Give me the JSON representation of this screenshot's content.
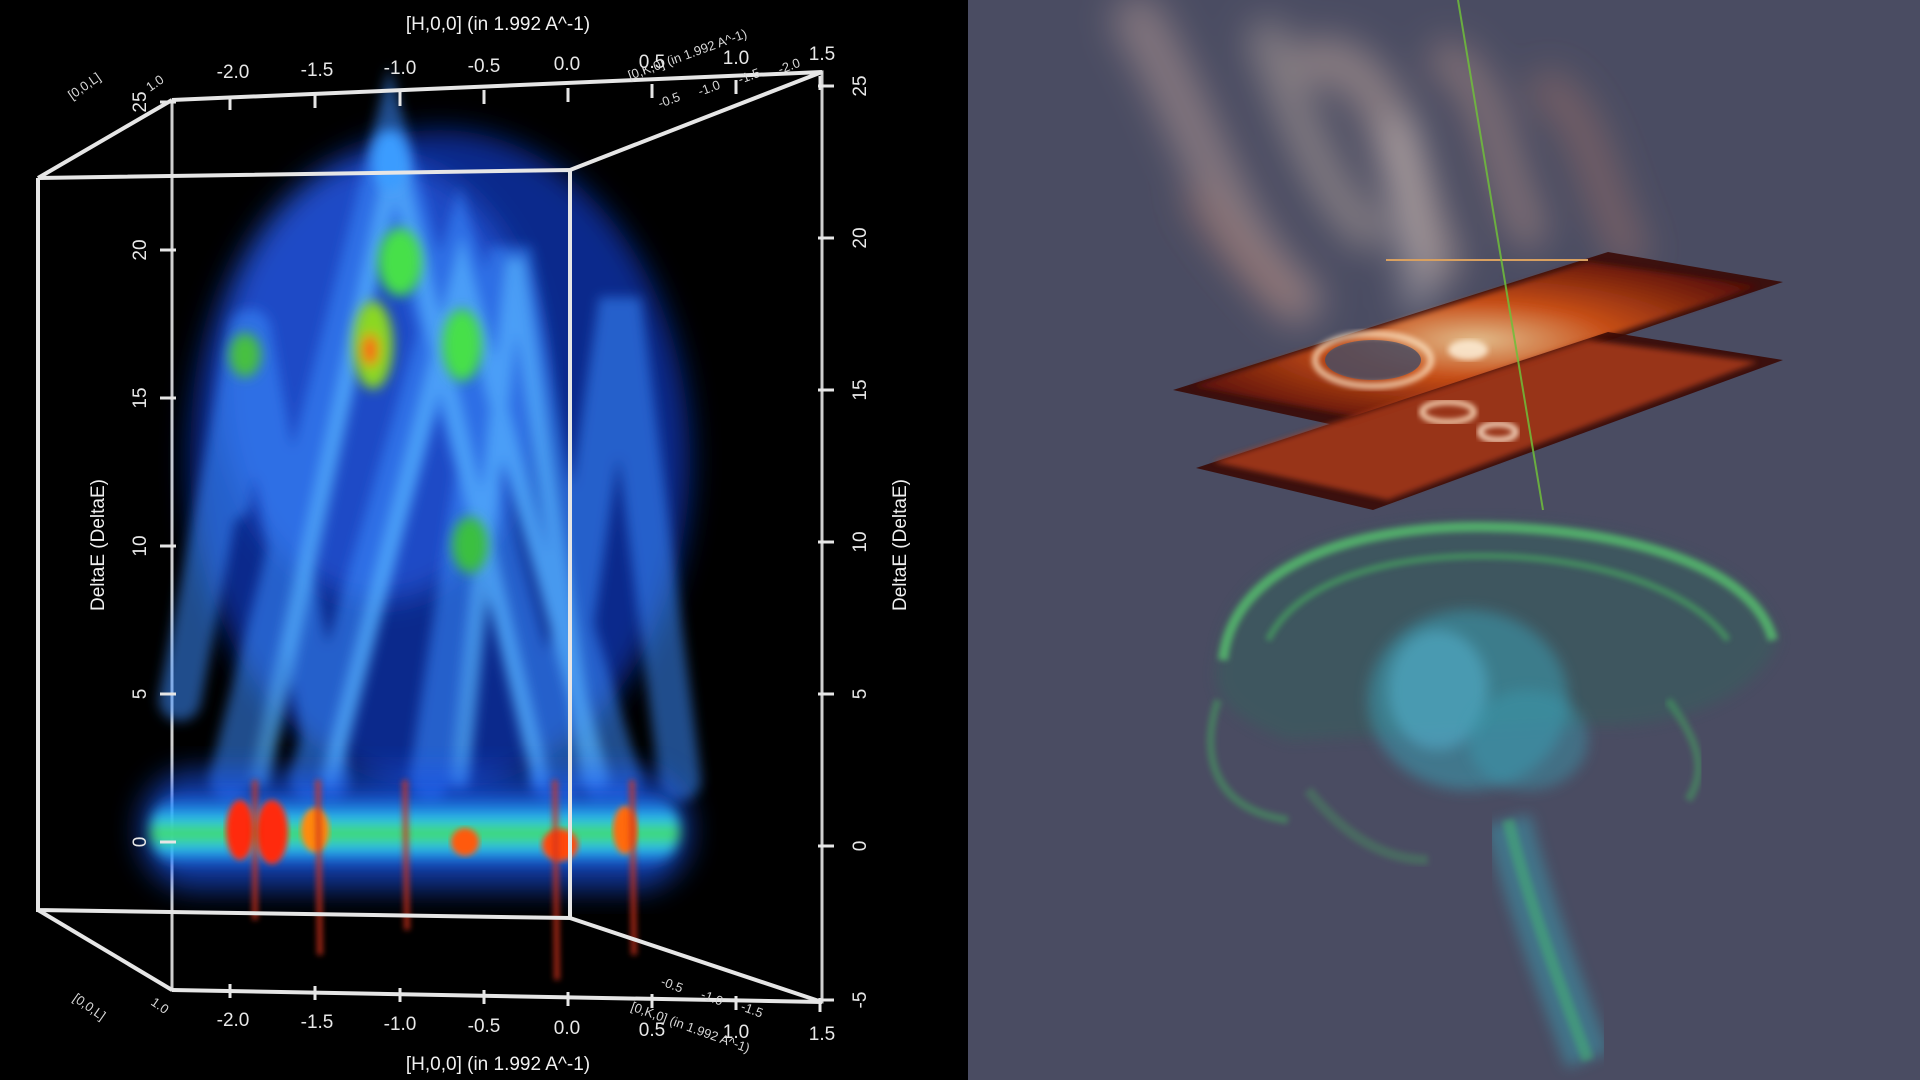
{
  "scene": {
    "left_title_top": "[H,0,0] (in 1.992 A^-1)",
    "left_title_bottom": "[H,0,0] (in 1.992 A^-1)",
    "left_ylabel": "DeltaE (DeltaE)",
    "right_ylabel": "DeltaE (DeltaE)",
    "h_ticks": [
      "-2.0",
      "-1.5",
      "-1.0",
      "-0.5",
      "0.0",
      "0.5",
      "1.0",
      "1.5"
    ],
    "e_ticks_left": [
      "0",
      "5",
      "10",
      "15",
      "20",
      "25"
    ],
    "e_ticks_right": [
      "-5",
      "0",
      "5",
      "10",
      "15",
      "20",
      "25"
    ],
    "depth_ticks": [
      "-0.5",
      "-1.0",
      "-1.5",
      "-2.0"
    ],
    "depth_label": "[0,K,0] (in 1.992 A^-1)",
    "corner_value": "1.0",
    "corner_label": "[0,0,L]"
  },
  "colors": {
    "left_background": "#000000",
    "right_background": "#4a4c62",
    "box_lines": "#e6e6e6",
    "spectrum_blue": "#1a5cff",
    "spectrum_green": "#46e04a",
    "spectrum_red": "#ff2a10",
    "slice_orange": "#e05a1a",
    "volume_green": "#45c060",
    "volume_teal": "#3a9bb0",
    "axis_line": "#6fbf3a"
  }
}
